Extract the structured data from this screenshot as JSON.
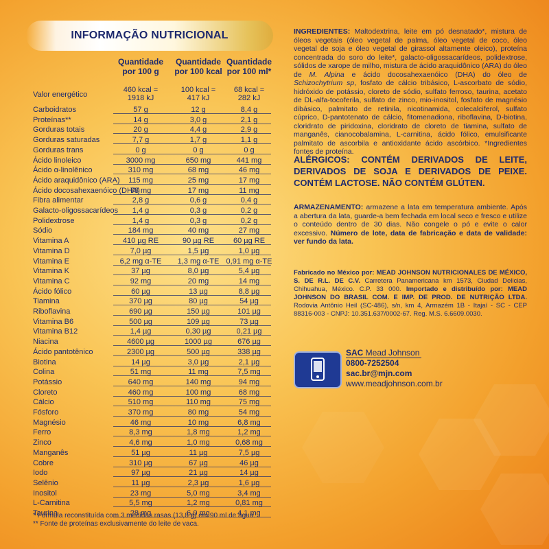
{
  "title": "INFORMAÇÃO NUTRICIONAL",
  "headers": [
    "Quantidade por 100 g",
    "Quantidade por 100 kcal",
    "Quantidade por 100 ml*"
  ],
  "headers_lines": [
    [
      "Quantidade",
      "por 100 g"
    ],
    [
      "Quantidade",
      "por 100 kcal"
    ],
    [
      "Quantidade",
      "por 100 ml*"
    ]
  ],
  "energy": {
    "label": "Valor energético",
    "c1a": "460 kcal =",
    "c1b": "1918 kJ",
    "c2a": "100 kcal =",
    "c2b": "417 kJ",
    "c3a": "68 kcal =",
    "c3b": "282 kJ"
  },
  "rows": [
    [
      "Carboidratos",
      "57 g",
      "12 g",
      "8,4 g"
    ],
    [
      "Proteínas**",
      "14 g",
      "3,0 g",
      "2,1 g"
    ],
    [
      "Gorduras totais",
      "20 g",
      "4,4 g",
      "2,9 g"
    ],
    [
      "Gorduras saturadas",
      "7,7 g",
      "1,7 g",
      "1,1 g"
    ],
    [
      "Gorduras trans",
      "0 g",
      "0 g",
      "0 g"
    ],
    [
      "Ácido linoleico",
      "3000 mg",
      "650 mg",
      "441 mg"
    ],
    [
      "Ácido α-linolênico",
      "310 mg",
      "68 mg",
      "46 mg"
    ],
    [
      "Ácido araquidônico (ARA)",
      "115 mg",
      "25 mg",
      "17 mg"
    ],
    [
      "Ácido docosahexaenóico (DHA)",
      "78 mg",
      "17 mg",
      "11 mg"
    ],
    [
      "Fibra alimentar",
      "2,8 g",
      "0,6 g",
      "0,4 g"
    ],
    [
      "Galacto-oligossacarídeos",
      "1,4 g",
      "0,3 g",
      "0,2 g"
    ],
    [
      "Polidextrose",
      "1,4 g",
      "0,3 g",
      "0,2 g"
    ],
    [
      "Sódio",
      "184 mg",
      "40 mg",
      "27 mg"
    ],
    [
      "Vitamina A",
      "410 µg RE",
      "90 µg RE",
      "60 µg RE"
    ],
    [
      "Vitamina D",
      "7,0 µg",
      "1,5 µg",
      "1,0 µg"
    ],
    [
      "Vitamina E",
      "6,2 mg α-TE",
      "1,3 mg α-TE",
      "0,91 mg α-TE"
    ],
    [
      "Vitamina K",
      "37 µg",
      "8,0 µg",
      "5,4 µg"
    ],
    [
      "Vitamina C",
      "92 mg",
      "20 mg",
      "14 mg"
    ],
    [
      "Ácido fólico",
      "60 µg",
      "13 µg",
      "8,8 µg"
    ],
    [
      "Tiamina",
      "370 µg",
      "80 µg",
      "54 µg"
    ],
    [
      "Riboflavina",
      "690 µg",
      "150 µg",
      "101 µg"
    ],
    [
      "Vitamina B6",
      "500 µg",
      "109 µg",
      "73 µg"
    ],
    [
      "Vitamina B12",
      "1,4 µg",
      "0,30 µg",
      "0,21 µg"
    ],
    [
      "Niacina",
      "4600 µg",
      "1000 µg",
      "676 µg"
    ],
    [
      "Ácido pantotênico",
      "2300 µg",
      "500 µg",
      "338 µg"
    ],
    [
      "Biotina",
      "14 µg",
      "3,0 µg",
      "2,1 µg"
    ],
    [
      "Colina",
      "51 mg",
      "11 mg",
      "7,5 mg"
    ],
    [
      "Potássio",
      "640 mg",
      "140 mg",
      "94 mg"
    ],
    [
      "Cloreto",
      "460 mg",
      "100 mg",
      "68 mg"
    ],
    [
      "Cálcio",
      "510 mg",
      "110 mg",
      "75 mg"
    ],
    [
      "Fósforo",
      "370 mg",
      "80 mg",
      "54 mg"
    ],
    [
      "Magnésio",
      "46 mg",
      "10 mg",
      "6,8 mg"
    ],
    [
      "Ferro",
      "8,3 mg",
      "1,8 mg",
      "1,2 mg"
    ],
    [
      "Zinco",
      "4,6 mg",
      "1,0 mg",
      "0,68 mg"
    ],
    [
      "Manganês",
      "51 µg",
      "11 µg",
      "7,5 µg"
    ],
    [
      "Cobre",
      "310 µg",
      "67 µg",
      "46 µg"
    ],
    [
      "Iodo",
      "97 µg",
      "21 µg",
      "14 µg"
    ],
    [
      "Selênio",
      "11 µg",
      "2,3 µg",
      "1,6 µg"
    ],
    [
      "Inositol",
      "23 mg",
      "5,0 mg",
      "3,4 mg"
    ],
    [
      "L-Carnitina",
      "5,5 mg",
      "1,2 mg",
      "0,81 mg"
    ],
    [
      "Taurina",
      "28 mg",
      "6,0 mg",
      "4,1 mg"
    ]
  ],
  "footnotes": [
    "* Fórmula reconstituída com 3 medidas rasas (13,8 g) em 90 ml de água.",
    "** Fonte de proteínas exclusivamente do leite de vaca."
  ],
  "ingredients": {
    "label": "INGREDIENTES:",
    "text_a": " Maltodextrina, leite em pó desnatado*, mistura de óleos vegetais (óleo vegetal de palma, óleo vegetal de coco, óleo vegetal de soja e óleo vegetal de girassol altamente oleico), proteína concentrada do soro do leite*, galacto-oligossacarídeos, polidextrose, sólidos de xarope de milho, mistura de ácido araquidônico (ARA) do óleo de ",
    "italic_a": "M. Alpina",
    "text_b": " e ácido docosahexaenóico (DHA) do óleo de ",
    "italic_b": "Schizochytrium sp",
    "text_c": ", fosfato de cálcio tribásico, L-ascorbato de sódio, hidróxido de potássio, cloreto de sódio, sulfato ferroso, taurina, acetato de DL-alfa-tocoferila, sulfato de zinco, mio-inositol, fosfato de magnésio dibásico, palmitato de retinila, nicotinamida, colecalciferol, sulfato cúprico, D-pantotenato de cálcio, fitomenadiona, riboflavina, D-biotina, cloridrato de piridoxina, cloridrato de cloreto de tiamina, sulfato de manganês, cianocobalamina, L-carnitina, ácido fólico, emulsificante palmitato de ascorbila e antioxidante ácido ascórbico. *Ingredientes fontes de proteína."
  },
  "allergens": "ALÉRGICOS: CONTÉM DERIVADOS DE LEITE, DERIVADOS DE SOJA E DERIVADOS DE PEIXE. CONTÉM LACTOSE. NÃO CONTÉM GLÚTEN.",
  "storage": {
    "label": "ARMAZENAMENTO:",
    "text": " armazene a lata em temperatura ambiente. Após a abertura da lata, guarde-a bem fechada em local seco e fresco e utilize o conteúdo dentro de 30 dias. Não congele o pó e evite o calor excessivo.",
    "bold_tail": "Número de lote, data de fabricação e data de validade: ver fundo da lata."
  },
  "manufacture": {
    "fab_label": "Fabricado no México por: MEAD JOHNSON NUTRICIONALES DE MÉXICO, S. DE R.L. DE C.V.",
    "fab_addr": " Carretera Panamericana km 1573, Ciudad Delicias, Chihuahua, México. C.P. 33 000.",
    "imp_label": "Importado e distribuído por: MEAD JOHNSON DO BRASIL COM. E IMP. DE PROD. DE NUTRIÇÃO LTDA.",
    "imp_addr": " Rodovia Antônio Heil (SC-486), s/n, km 4, Armazém 1B - Itajaí - SC - CEP 88316-003 - CNPJ: 10.351.637/0002-67. Reg. M.S. 6.6609.0030."
  },
  "sac": {
    "label": "SAC",
    "brand": " Mead Johnson",
    "phone": "0800-7252504",
    "email": "sac.br@mjn.com",
    "web": "www.meadjohnson.com.br",
    "icon": "phone-icon"
  }
}
